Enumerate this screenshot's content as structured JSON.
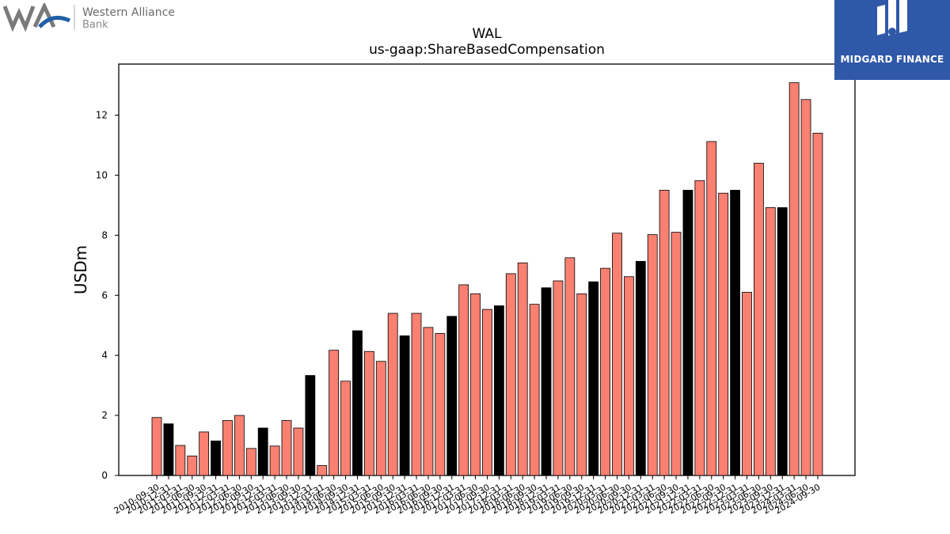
{
  "branding": {
    "left_name": "Western Alliance",
    "left_sub": "Bank",
    "right_name": "MIDGARD FINANCE"
  },
  "chart_data": {
    "type": "bar",
    "title": "WAL",
    "subtitle": "us-gaap:ShareBasedCompensation",
    "ylabel": "USDm",
    "xlabel": "",
    "ylim": [
      0,
      13.7
    ],
    "yticks": [
      0,
      2,
      4,
      6,
      8,
      10,
      12
    ],
    "colors": {
      "quarter": "#fa8072",
      "annual": "#000000"
    },
    "categories": [
      "2010-09-30",
      "2010-12-31",
      "2011-03-31",
      "2011-06-30",
      "2011-09-30",
      "2011-12-31",
      "2012-03-31",
      "2012-06-30",
      "2012-09-30",
      "2012-12-31",
      "2013-03-31",
      "2013-06-30",
      "2013-09-30",
      "2013-12-31",
      "2014-03-31",
      "2014-06-30",
      "2014-09-30",
      "2014-12-31",
      "2015-03-31",
      "2015-06-30",
      "2015-09-30",
      "2015-12-31",
      "2016-03-31",
      "2016-06-30",
      "2016-09-30",
      "2016-12-31",
      "2017-03-31",
      "2017-06-30",
      "2017-09-30",
      "2017-12-31",
      "2018-03-31",
      "2018-06-30",
      "2018-09-30",
      "2018-12-31",
      "2019-03-31",
      "2019-06-30",
      "2019-09-30",
      "2019-12-31",
      "2020-03-31",
      "2020-06-30",
      "2020-09-30",
      "2020-12-31",
      "2021-03-31",
      "2021-06-30",
      "2021-09-30",
      "2021-12-31",
      "2022-03-31",
      "2022-06-30",
      "2022-09-30",
      "2022-12-31",
      "2023-03-31",
      "2023-06-30",
      "2023-09-30",
      "2023-12-31",
      "2024-03-31",
      "2024-06-30",
      "2024-09-30"
    ],
    "values": [
      1.93,
      1.72,
      1.0,
      0.65,
      1.45,
      1.15,
      1.83,
      2.0,
      0.9,
      1.58,
      0.98,
      1.83,
      1.58,
      3.33,
      0.33,
      4.17,
      3.14,
      4.82,
      4.13,
      3.8,
      5.4,
      4.65,
      5.4,
      4.93,
      4.73,
      5.3,
      6.35,
      6.05,
      5.53,
      5.65,
      6.72,
      7.08,
      5.7,
      6.25,
      6.48,
      7.25,
      6.05,
      6.45,
      6.9,
      8.07,
      6.62,
      7.13,
      8.02,
      9.5,
      8.1,
      9.5,
      9.82,
      11.12,
      9.4,
      9.5,
      6.1,
      10.4,
      8.92,
      8.92,
      13.08,
      12.52,
      11.4
    ],
    "annual_flags": [
      0,
      1,
      0,
      0,
      0,
      1,
      0,
      0,
      0,
      1,
      0,
      0,
      0,
      1,
      0,
      0,
      0,
      1,
      0,
      0,
      0,
      1,
      0,
      0,
      0,
      1,
      0,
      0,
      0,
      1,
      0,
      0,
      0,
      1,
      0,
      0,
      0,
      1,
      0,
      0,
      0,
      1,
      0,
      0,
      0,
      1,
      0,
      0,
      0,
      1,
      0,
      0,
      0,
      1,
      0,
      0,
      0
    ]
  }
}
